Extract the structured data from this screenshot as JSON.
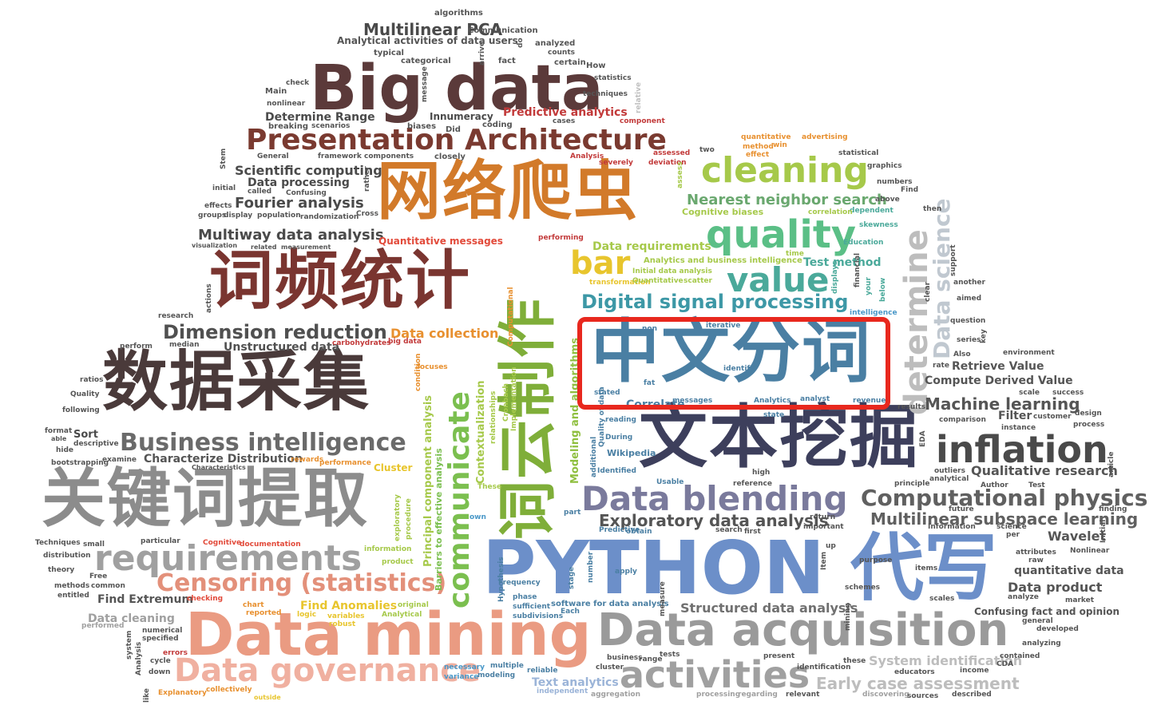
{
  "words": {
    "big_data": "Big data",
    "multilinear_pca": "Multilinear PCA",
    "analytical_activities": "Analytical activities of data users",
    "presentation_architecture": "Presentation Architecture",
    "wangluo_pachong": "网络爬虫",
    "cipin_tongji": "词频统计",
    "shuju_caiji": "数据采集",
    "guanjianci_tiqu": "关键词提取",
    "zhongwen_fenci": "中文分词",
    "wenben_wajue": "文本挖掘",
    "ciyun_zhizuo": "词云制作",
    "python_daixie": "PYTHON 代写",
    "data_mining": "Data mining",
    "data_acquisition": "Data acquisition",
    "activities": "activities",
    "data_governance": "Data governance",
    "requirements": "requirements",
    "censoring": "Censoring (statistics)",
    "business_intelligence": "Business intelligence",
    "characterize_distribution": "Characterize Distribution",
    "dimension_reduction": "Dimension reduction",
    "unstructured_data": "Unstructured data",
    "data_collection": "Data collection",
    "communicate": "communicate",
    "cleaning": "cleaning",
    "quality": "quality",
    "value": "value",
    "bar": "bar",
    "digital_signal_processing": "Digital signal processing",
    "nearest_neighbor": "Nearest neighbor search",
    "determine": "determine",
    "data_science": "Data science",
    "inflation": "inflation",
    "machine_learning": "Machine learning",
    "computational_physics": "Computational physics",
    "multilinear_subspace": "Multilinear subspace learning",
    "qualitative_research": "Qualitative research",
    "data_blending": "Data blending",
    "exploratory_data_analysis": "Exploratory data analysis",
    "structured_data_analysis": "Structured data analysis",
    "early_case_assessment": "Early case assessment",
    "system_identification": "System identification",
    "text_analytics": "Text analytics",
    "wavelet": "Wavelet",
    "data_product": "Data product",
    "quantitative_data": "quantitative data",
    "confusing_fact": "Confusing fact and opinion",
    "retrieve_value": "Retrieve Value",
    "compute_derived_value": "Compute Derived Value",
    "filter": "Filter",
    "scientific_computing": "Scientific computing",
    "data_processing": "Data processing",
    "fourier_analysis": "Fourier analysis",
    "multiway_data_analysis": "Multiway data analysis",
    "quantitative_messages": "Quantitative messages",
    "determine_range": "Determine Range",
    "innumeracy": "Innumeracy",
    "predictive_analytics": "Predictive analytics",
    "data_requirements": "Data requirements",
    "test_method": "Test method",
    "cognitive_biases": "Cognitive biases",
    "find_extremum": "Find Extremum",
    "find_anomalies": "Find Anomalies",
    "data_cleaning": "Data cleaning",
    "principal_component": "Principal component analysis",
    "barriers": "Barriers to effective analysis",
    "contextualization": "Contextualization",
    "modeling_algorithms": "Modeling and algorithms",
    "correlate": "Correlate",
    "software_for_data_analysis": "software for data analysis",
    "wikipedia": "Wikipedia",
    "analytics_bi": "Analytics and business intelligence",
    "initial_data_analysis": "Initial data analysis",
    "algorithms": "algorithms",
    "communication": "Communication",
    "analyzed": "analyzed",
    "counts": "counts",
    "typical": "typical",
    "categorical": "categorical",
    "fact": "fact",
    "certain": "certain",
    "how": "How",
    "statistics": "statistics",
    "techniques": "techniques",
    "main": "Main",
    "check": "check",
    "nonlinear": "nonlinear",
    "breaking": "breaking",
    "scenarios": "scenarios",
    "biases": "biases",
    "did": "Did",
    "coding": "coding",
    "cases": "cases",
    "component": "component",
    "general": "General",
    "framework": "framework",
    "components": "components",
    "closely": "closely",
    "analysis_word": "Analysis",
    "severely": "severely",
    "assessed": "assessed",
    "deviation": "deviation",
    "two": "two",
    "quantitative": "quantitative",
    "method": "method",
    "effect": "effect",
    "advertising": "advertising",
    "win": "win",
    "statistical": "statistical",
    "graphics": "graphics",
    "numbers": "numbers",
    "find": "Find",
    "above": "above",
    "then": "then",
    "dependent": "dependent",
    "correlation": "correlation",
    "skewness": "skewness",
    "education": "Education",
    "time": "time",
    "initial": "initial",
    "called": "called",
    "confusing": "Confusing",
    "effects": "effects",
    "groups": "groups",
    "display": "display",
    "population": "population",
    "randomization": "randomization",
    "cross": "Cross",
    "visualization": "visualization",
    "related": "related",
    "measurement": "measurement",
    "performing": "performing",
    "research": "research",
    "perform": "perform",
    "median": "median",
    "carbohydrates": "carbohydrates",
    "big_data_small": "big data",
    "ratios": "ratios",
    "quality_small": "Quality",
    "following": "following",
    "format": "format",
    "able": "able",
    "sort": "Sort",
    "descriptive": "descriptive",
    "hide": "hide",
    "bootstrapping": "bootstrapping",
    "examine": "examine",
    "characteristics": "Characteristics",
    "rewards": "rewards",
    "performance": "performance",
    "cluster": "Cluster",
    "techniques_cap": "Techniques",
    "small": "small",
    "distribution": "distribution",
    "particular": "particular",
    "cognitive": "Cognitive",
    "documentation": "documentation",
    "theory": "theory",
    "free": "Free",
    "methods": "methods",
    "common": "common",
    "entitled": "entitled",
    "checking": "checking",
    "chart": "chart",
    "reported": "reported",
    "logic": "logic",
    "variables": "variables",
    "robust": "robust",
    "original": "original",
    "analytical": "Analytical",
    "performed": "performed",
    "numerical": "numerical",
    "specified": "specified",
    "errors": "errors",
    "cycle": "cycle",
    "down": "down",
    "explanatory": "Explanatory",
    "collectively": "collectively",
    "outside": "outside",
    "necessary": "necessary",
    "variance": "variance",
    "multiple": "multiple",
    "modeling": "modeling",
    "reliable": "reliable",
    "independent": "independent",
    "aggregation": "aggregation",
    "processing": "processing",
    "regarding": "regarding",
    "relevant": "relevant",
    "discovering": "discovering",
    "sources": "sources",
    "described": "described",
    "cluster_small": "cluster",
    "business": "business",
    "range": "range",
    "tests": "tests",
    "present": "present",
    "identification": "identification",
    "these": "these",
    "educators": "educators",
    "income": "income",
    "contained": "contained",
    "cda": "CDA",
    "analyzing": "analyzing",
    "developed": "developed",
    "general_small": "general",
    "scales": "scales",
    "market": "market",
    "analyze": "analyze",
    "items": "items",
    "schemes": "schemes",
    "raw": "raw",
    "attributes": "attributes",
    "nonlinear_cap": "Nonlinear",
    "science": "science",
    "per": "per",
    "information": "Information",
    "important": "important",
    "first": "first",
    "search": "search",
    "reference": "reference",
    "high": "high",
    "usable": "Usable",
    "identified": "Identified",
    "during": "During",
    "reading": "reading",
    "state": "state",
    "stated": "stated",
    "fat": "fat",
    "identify": "identify",
    "messages": "messages",
    "analytics": "Analytics",
    "analyst": "analyst",
    "revenue": "revenue",
    "results": "results",
    "comparison": "comparison",
    "customer": "customer",
    "design": "design",
    "process": "process",
    "scale": "scale",
    "success": "success",
    "instance": "instance",
    "environment": "environment",
    "also": "Also",
    "rate": "rate",
    "series": "series",
    "question": "question",
    "aimed": "aimed",
    "another": "another",
    "outliers": "outliers",
    "analytical_small": "analytical",
    "principle": "principle",
    "author": "Author",
    "test": "Test",
    "future": "future",
    "finding": "finding",
    "purpose": "purpose",
    "phase": "phase",
    "sufficient": "sufficient",
    "subdivisions": "subdivisions",
    "each": "Each",
    "apply": "apply",
    "frequency": "Frequency",
    "predictive": "Predictive",
    "obtain": "obtain",
    "part": "part",
    "these_cap": "These",
    "own": "own",
    "product": "product",
    "information_small": "information",
    "transformation": "transformation",
    "quantitative_cap": "Quantitative",
    "scatter": "scatter",
    "non": "non",
    "iterative": "iterative",
    "intelligence": "intelligence",
    "focuses": "focuses",
    "condition": "condition",
    "return": "return",
    "up": "up",
    "item": "Item",
    "mining": "mining",
    "measure": "measure",
    "stage": "stage",
    "number": "number",
    "hypothesis": "Hypothesis",
    "implementation": "Implementation",
    "relationships": "relationships",
    "cronbach": "Cronbach",
    "computational": "Computational",
    "stem": "Stem",
    "rather": "rather",
    "message": "message",
    "arrive": "arrive",
    "do": "do",
    "relative": "relative",
    "assess": "assess",
    "financial": "financial",
    "your": "your",
    "below": "below",
    "clear": "clear",
    "support": "support",
    "key": "key",
    "eda": "EDA",
    "initial_v": "Initial",
    "article": "article",
    "system": "system",
    "analysis_v": "Analysis",
    "like": "like",
    "actions": "actions",
    "exploratory": "exploratory",
    "procedure": "procedure",
    "additional": "additional",
    "quality_of_data": "Quality of data",
    "displays": "displays"
  }
}
